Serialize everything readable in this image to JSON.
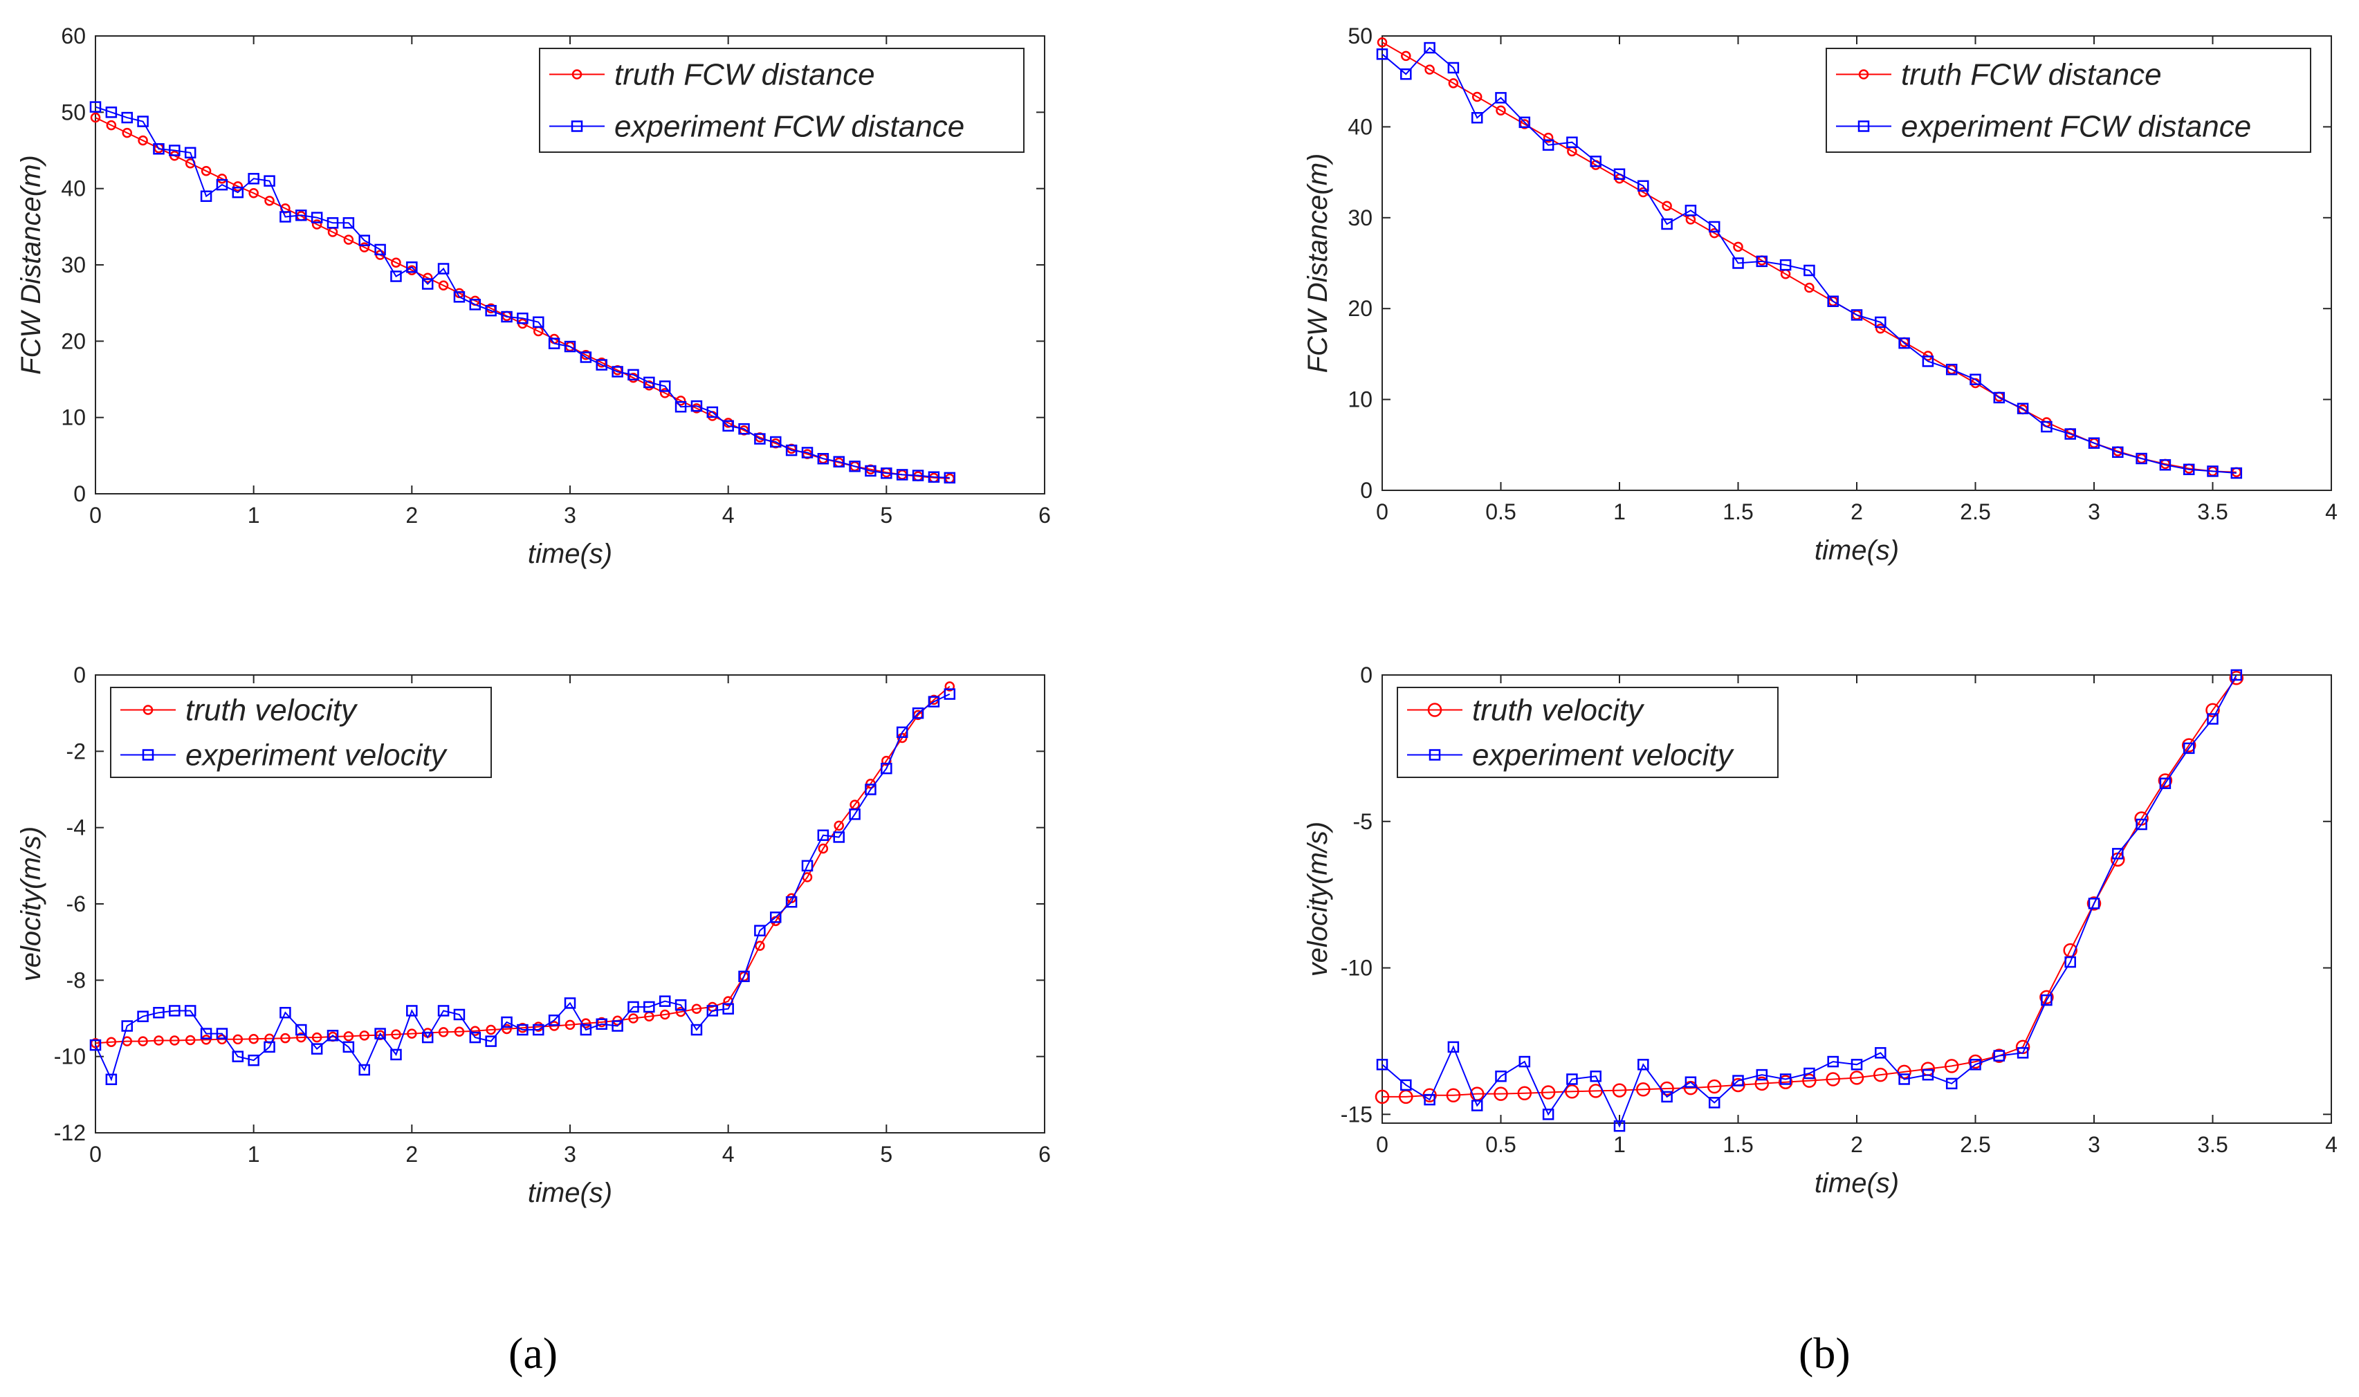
{
  "panel_labels": [
    "(a)",
    "(b)"
  ],
  "colors": {
    "truth": "#ff0000",
    "experiment": "#0000ff"
  },
  "chart_data": [
    {
      "type": "line",
      "xlabel": "time(s)",
      "ylabel": "FCW Distance(m)",
      "xlim": [
        0,
        6
      ],
      "ylim": [
        0,
        60
      ],
      "xticks": [
        "0",
        "1",
        "2",
        "3",
        "4",
        "5",
        "6"
      ],
      "yticks": [
        "0",
        "10",
        "20",
        "30",
        "40",
        "50",
        "60"
      ],
      "grid": false,
      "legend": "top-right",
      "x": [
        0,
        0.1,
        0.2,
        0.3,
        0.4,
        0.5,
        0.6,
        0.7,
        0.8,
        0.9,
        1.0,
        1.1,
        1.2,
        1.3,
        1.4,
        1.5,
        1.6,
        1.7,
        1.8,
        1.9,
        2.0,
        2.1,
        2.2,
        2.3,
        2.4,
        2.5,
        2.6,
        2.7,
        2.8,
        2.9,
        3.0,
        3.1,
        3.2,
        3.3,
        3.4,
        3.5,
        3.6,
        3.7,
        3.8,
        3.9,
        4.0,
        4.1,
        4.2,
        4.3,
        4.4,
        4.5,
        4.6,
        4.7,
        4.8,
        4.9,
        5.0,
        5.1,
        5.2,
        5.3,
        5.4
      ],
      "series": [
        {
          "name": "truth FCW distance",
          "marker": "circle",
          "color": "#ff0000",
          "values": [
            49.3,
            48.3,
            47.3,
            46.3,
            45.3,
            44.3,
            43.3,
            42.3,
            41.3,
            40.3,
            39.4,
            38.4,
            37.4,
            36.4,
            35.3,
            34.3,
            33.3,
            32.3,
            31.3,
            30.3,
            29.3,
            28.3,
            27.3,
            26.3,
            25.3,
            24.3,
            23.3,
            22.3,
            21.3,
            20.3,
            19.3,
            18.2,
            17.2,
            16.2,
            15.2,
            14.2,
            13.2,
            12.2,
            11.2,
            10.2,
            9.3,
            8.3,
            7.4,
            6.6,
            5.9,
            5.2,
            4.6,
            4.1,
            3.6,
            3.2,
            2.8,
            2.5,
            2.3,
            2.1,
            2.0
          ]
        },
        {
          "name": "experiment FCW distance",
          "marker": "square",
          "color": "#0000ff",
          "values": [
            50.7,
            50.0,
            49.3,
            48.8,
            45.2,
            45.0,
            44.7,
            39.0,
            40.5,
            39.5,
            41.3,
            41.0,
            36.3,
            36.5,
            36.2,
            35.5,
            35.5,
            33.2,
            32.0,
            28.5,
            29.7,
            27.5,
            29.5,
            25.8,
            24.8,
            24.0,
            23.2,
            23.0,
            22.5,
            19.7,
            19.3,
            17.9,
            16.9,
            16.0,
            15.6,
            14.6,
            14.1,
            11.4,
            11.5,
            10.7,
            8.9,
            8.5,
            7.2,
            6.8,
            5.7,
            5.4,
            4.6,
            4.2,
            3.6,
            3.0,
            2.7,
            2.5,
            2.4,
            2.2,
            2.1
          ]
        }
      ]
    },
    {
      "type": "line",
      "xlabel": "time(s)",
      "ylabel": "FCW Distance(m)",
      "xlim": [
        0,
        4
      ],
      "ylim": [
        0,
        50
      ],
      "xticks": [
        "0",
        "0.5",
        "1",
        "1.5",
        "2",
        "2.5",
        "3",
        "3.5",
        "4"
      ],
      "yticks": [
        "0",
        "10",
        "20",
        "30",
        "40",
        "50"
      ],
      "grid": false,
      "legend": "top-right",
      "x": [
        0,
        0.1,
        0.2,
        0.3,
        0.4,
        0.5,
        0.6,
        0.7,
        0.8,
        0.9,
        1.0,
        1.1,
        1.2,
        1.3,
        1.4,
        1.5,
        1.6,
        1.7,
        1.8,
        1.9,
        2.0,
        2.1,
        2.2,
        2.3,
        2.4,
        2.5,
        2.6,
        2.7,
        2.8,
        2.9,
        3.0,
        3.1,
        3.2,
        3.3,
        3.4,
        3.5,
        3.6
      ],
      "series": [
        {
          "name": "truth FCW distance",
          "marker": "circle",
          "color": "#ff0000",
          "values": [
            49.3,
            47.8,
            46.3,
            44.8,
            43.3,
            41.8,
            40.3,
            38.8,
            37.3,
            35.8,
            34.3,
            32.8,
            31.3,
            29.8,
            28.3,
            26.8,
            25.3,
            23.8,
            22.3,
            20.8,
            19.3,
            17.8,
            16.3,
            14.8,
            13.3,
            11.8,
            10.3,
            8.9,
            7.5,
            6.3,
            5.2,
            4.3,
            3.5,
            2.9,
            2.4,
            2.1,
            2.0
          ]
        },
        {
          "name": "experiment FCW distance",
          "marker": "square",
          "color": "#0000ff",
          "values": [
            48.0,
            45.8,
            48.7,
            46.5,
            41.0,
            43.2,
            40.5,
            38.0,
            38.3,
            36.2,
            34.8,
            33.5,
            29.3,
            30.8,
            29.0,
            25.0,
            25.2,
            24.8,
            24.2,
            20.8,
            19.3,
            18.5,
            16.2,
            14.2,
            13.3,
            12.2,
            10.2,
            9.0,
            7.0,
            6.2,
            5.2,
            4.2,
            3.5,
            2.8,
            2.3,
            2.1,
            1.9
          ]
        }
      ]
    },
    {
      "type": "line",
      "xlabel": "time(s)",
      "ylabel": "velocity(m/s)",
      "xlim": [
        0,
        6
      ],
      "ylim": [
        -12,
        0
      ],
      "xticks": [
        "0",
        "1",
        "2",
        "3",
        "4",
        "5",
        "6"
      ],
      "yticks": [
        "-12",
        "-10",
        "-8",
        "-6",
        "-4",
        "-2",
        "0"
      ],
      "grid": false,
      "legend": "top-left",
      "x": [
        0,
        0.1,
        0.2,
        0.3,
        0.4,
        0.5,
        0.6,
        0.7,
        0.8,
        0.9,
        1.0,
        1.1,
        1.2,
        1.3,
        1.4,
        1.5,
        1.6,
        1.7,
        1.8,
        1.9,
        2.0,
        2.1,
        2.2,
        2.3,
        2.4,
        2.5,
        2.6,
        2.7,
        2.8,
        2.9,
        3.0,
        3.1,
        3.2,
        3.3,
        3.4,
        3.5,
        3.6,
        3.7,
        3.8,
        3.9,
        4.0,
        4.1,
        4.2,
        4.3,
        4.4,
        4.5,
        4.6,
        4.7,
        4.8,
        4.9,
        5.0,
        5.1,
        5.2,
        5.3,
        5.4
      ],
      "series": [
        {
          "name": "truth velocity",
          "marker": "circle",
          "color": "#ff0000",
          "values": [
            -9.65,
            -9.62,
            -9.6,
            -9.6,
            -9.58,
            -9.58,
            -9.57,
            -9.56,
            -9.55,
            -9.55,
            -9.54,
            -9.53,
            -9.52,
            -9.5,
            -9.5,
            -9.48,
            -9.47,
            -9.45,
            -9.44,
            -9.42,
            -9.4,
            -9.38,
            -9.36,
            -9.35,
            -9.33,
            -9.3,
            -9.28,
            -9.25,
            -9.22,
            -9.2,
            -9.17,
            -9.13,
            -9.1,
            -9.06,
            -9.0,
            -8.95,
            -8.9,
            -8.83,
            -8.75,
            -8.7,
            -8.55,
            -7.9,
            -7.1,
            -6.45,
            -5.85,
            -5.3,
            -4.55,
            -3.95,
            -3.4,
            -2.85,
            -2.25,
            -1.65,
            -1.05,
            -0.65,
            -0.3
          ]
        },
        {
          "name": "experiment velocity",
          "marker": "square",
          "color": "#0000ff",
          "values": [
            -9.7,
            -10.6,
            -9.2,
            -8.95,
            -8.85,
            -8.8,
            -8.8,
            -9.4,
            -9.4,
            -10.0,
            -10.1,
            -9.75,
            -8.85,
            -9.3,
            -9.8,
            -9.45,
            -9.75,
            -10.35,
            -9.4,
            -9.95,
            -8.8,
            -9.5,
            -8.8,
            -8.9,
            -9.5,
            -9.6,
            -9.1,
            -9.3,
            -9.3,
            -9.05,
            -8.6,
            -9.3,
            -9.15,
            -9.2,
            -8.7,
            -8.7,
            -8.55,
            -8.65,
            -9.3,
            -8.8,
            -8.75,
            -7.9,
            -6.7,
            -6.35,
            -5.95,
            -5.0,
            -4.2,
            -4.25,
            -3.65,
            -3.0,
            -2.45,
            -1.5,
            -1.0,
            -0.7,
            -0.5
          ]
        }
      ]
    },
    {
      "type": "line",
      "xlabel": "time(s)",
      "ylabel": "velocity(m/s)",
      "xlim": [
        0,
        4
      ],
      "ylim": [
        -15.3,
        0
      ],
      "xticks": [
        "0",
        "0.5",
        "1",
        "1.5",
        "2",
        "2.5",
        "3",
        "3.5",
        "4"
      ],
      "yticks": [
        "-15",
        "-10",
        "-5",
        "0"
      ],
      "yticks_values": [
        -15,
        -10,
        -5,
        0
      ],
      "grid": false,
      "legend": "top-left",
      "x": [
        0,
        0.1,
        0.2,
        0.3,
        0.4,
        0.5,
        0.6,
        0.7,
        0.8,
        0.9,
        1.0,
        1.1,
        1.2,
        1.3,
        1.4,
        1.5,
        1.6,
        1.7,
        1.8,
        1.9,
        2.0,
        2.1,
        2.2,
        2.3,
        2.4,
        2.5,
        2.6,
        2.7,
        2.8,
        2.9,
        3.0,
        3.1,
        3.2,
        3.3,
        3.4,
        3.5,
        3.6
      ],
      "series": [
        {
          "name": "truth velocity",
          "marker": "circle",
          "color": "#ff0000",
          "values": [
            -14.4,
            -14.4,
            -14.35,
            -14.35,
            -14.3,
            -14.3,
            -14.28,
            -14.25,
            -14.22,
            -14.2,
            -14.18,
            -14.15,
            -14.12,
            -14.1,
            -14.05,
            -14.0,
            -13.95,
            -13.9,
            -13.85,
            -13.8,
            -13.75,
            -13.65,
            -13.55,
            -13.45,
            -13.35,
            -13.2,
            -13.0,
            -12.7,
            -11.0,
            -9.4,
            -7.8,
            -6.3,
            -4.9,
            -3.6,
            -2.4,
            -1.2,
            -0.1
          ]
        },
        {
          "name": "experiment velocity",
          "marker": "square",
          "color": "#0000ff",
          "values": [
            -13.3,
            -14.0,
            -14.5,
            -12.7,
            -14.7,
            -13.7,
            -13.2,
            -15.0,
            -13.8,
            -13.7,
            -15.4,
            -13.3,
            -14.4,
            -13.9,
            -14.6,
            -13.85,
            -13.65,
            -13.8,
            -13.6,
            -13.2,
            -13.3,
            -12.9,
            -13.8,
            -13.65,
            -13.95,
            -13.3,
            -13.0,
            -12.9,
            -11.1,
            -9.8,
            -7.8,
            -6.1,
            -5.1,
            -3.7,
            -2.5,
            -1.5,
            0.0
          ]
        }
      ]
    }
  ]
}
